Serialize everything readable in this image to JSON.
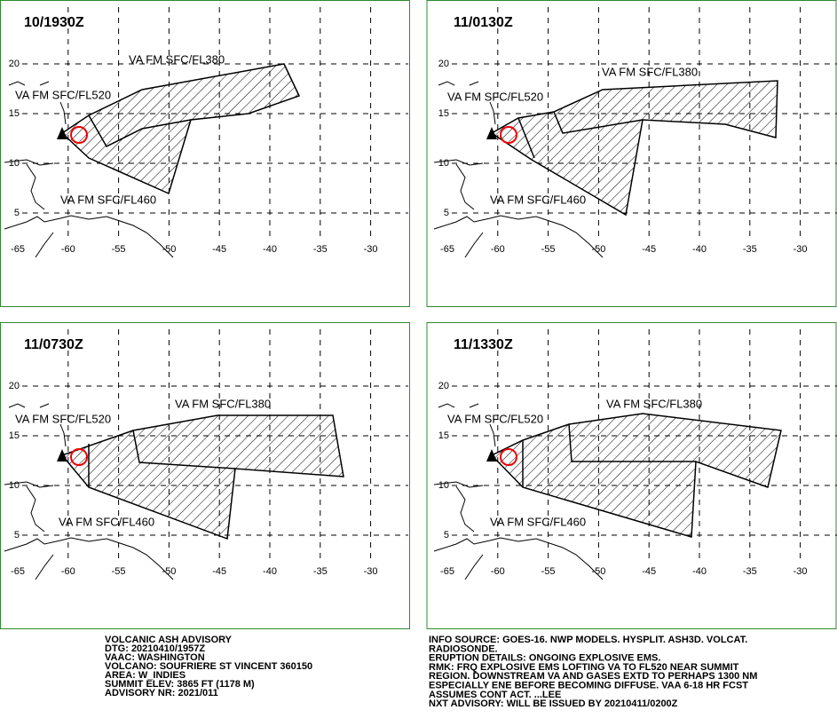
{
  "lon_ticks": [
    "-65",
    "-60",
    "-55",
    "-50",
    "-45",
    "-40",
    "-35",
    "-30"
  ],
  "lat_ticks": [
    "20",
    "15",
    "10",
    "5"
  ],
  "panels": [
    {
      "title": "10/1930Z",
      "label_fl380": "VA FM SFC/FL380",
      "label_fl520": "VA FM SFC/FL520",
      "label_fl460": "VA FM SFC/FL460"
    },
    {
      "title": "11/0130Z",
      "label_fl380": "VA FM SFC/FL380",
      "label_fl520": "VA FM SFC/FL520",
      "label_fl460": "VA FM SFC/FL460"
    },
    {
      "title": "11/0730Z",
      "label_fl380": "VA FM SFC/FL380",
      "label_fl520": "VA FM SFC/FL520",
      "label_fl460": "VA FM SFC/FL460"
    },
    {
      "title": "11/1330Z",
      "label_fl380": "VA FM SFC/FL380",
      "label_fl520": "VA FM SFC/FL520",
      "label_fl460": "VA FM SFC/FL460"
    }
  ],
  "advisory_left": [
    "VOLCANIC ASH ADVISORY",
    "DTG: 20210410/1957Z",
    "VAAC: WASHINGTON",
    "VOLCANO: SOUFRIERE ST VINCENT 360150",
    "AREA: W_INDIES",
    "SUMMIT ELEV: 3865 FT (1178 M)",
    "ADVISORY NR: 2021/011"
  ],
  "advisory_right": [
    "INFO SOURCE: GOES-16. NWP MODELS. HYSPLIT. ASH3D. VOLCAT.",
    "RADIOSONDE.",
    "ERUPTION DETAILS: ONGOING EXPLOSIVE EMS.",
    "RMK: FRQ EXPLOSIVE EMS LOFTING VA TO FL520 NEAR SUMMIT",
    "REGION. DOWNSTREAM VA AND GASES EXTD TO PERHAPS 1300 NM",
    "ESPECIALLY ENE BEFORE BECOMING DIFFUSE. VAA 6-18 HR FCST",
    "ASSUMES CONT ACT. ...LEE",
    "NXT ADVISORY: WILL BE ISSUED BY 20210411/0200Z"
  ]
}
